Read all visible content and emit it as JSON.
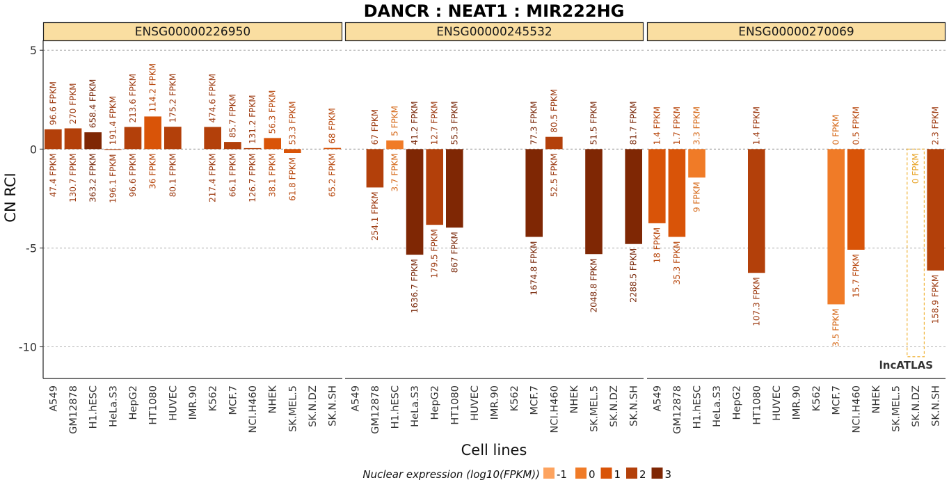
{
  "chart_data": {
    "type": "bar",
    "title": "DANCR : NEAT1 : MIR222HG",
    "xlabel": "Cell lines",
    "ylabel": "CN RCI",
    "ylim": [
      -11.6,
      5.5
    ],
    "yticks": [
      5,
      0,
      -5,
      -10
    ],
    "grid": "horizontal-dashed",
    "cell_lines": [
      "A549",
      "GM12878",
      "H1.hESC",
      "HeLa.S3",
      "HepG2",
      "HT1080",
      "HUVEC",
      "IMR.90",
      "K562",
      "MCF.7",
      "NCI.H460",
      "NHEK",
      "SK.MEL.5",
      "SK.N.DZ",
      "SK.N.SH"
    ],
    "legend": {
      "title": "Nuclear expression (log10(FPKM))",
      "position": "bottom",
      "levels": [
        {
          "label": "-1",
          "color": "#FDA35F"
        },
        {
          "label": "0",
          "color": "#F07B27"
        },
        {
          "label": "1",
          "color": "#D95408"
        },
        {
          "label": "2",
          "color": "#B3400A"
        },
        {
          "label": "3",
          "color": "#7F2704"
        }
      ]
    },
    "watermark": "lncATLAS",
    "panels": [
      {
        "gene_id": "ENSG00000226950",
        "bars": [
          {
            "cell": "A549",
            "value": 1.0,
            "level": 2,
            "label_top": "96.6 FPKM",
            "label_bottom": "47.4 FPKM"
          },
          {
            "cell": "GM12878",
            "value": 1.05,
            "level": 2,
            "label_top": "270 FPKM",
            "label_bottom": "130.7 FPKM"
          },
          {
            "cell": "H1.hESC",
            "value": 0.85,
            "level": 3,
            "label_top": "658.4 FPKM",
            "label_bottom": "363.2 FPKM"
          },
          {
            "cell": "HeLa.S3",
            "value": -0.04,
            "level": 2,
            "label_top": "191.4 FPKM",
            "label_bottom": "196.1 FPKM"
          },
          {
            "cell": "HepG2",
            "value": 1.12,
            "level": 2,
            "label_top": "213.6 FPKM",
            "label_bottom": "96.6 FPKM"
          },
          {
            "cell": "HT1080",
            "value": 1.65,
            "level": 1,
            "label_top": "114.2 FPKM",
            "label_bottom": "36 FPKM"
          },
          {
            "cell": "HUVEC",
            "value": 1.13,
            "level": 2,
            "label_top": "175.2 FPKM",
            "label_bottom": "80.1 FPKM"
          },
          {
            "cell": "K562",
            "value": 1.12,
            "level": 2,
            "label_top": "474.6 FPKM",
            "label_bottom": "217.4 FPKM"
          },
          {
            "cell": "MCF.7",
            "value": 0.36,
            "level": 2,
            "label_top": "85.7 FPKM",
            "label_bottom": "66.1 FPKM"
          },
          {
            "cell": "NCI.H460",
            "value": 0.05,
            "level": 2,
            "label_top": "131.2 FPKM",
            "label_bottom": "126.7 FPKM"
          },
          {
            "cell": "NHEK",
            "value": 0.56,
            "level": 1,
            "label_top": "56.3 FPKM",
            "label_bottom": "38.1 FPKM"
          },
          {
            "cell": "SK.MEL.5",
            "value": -0.2,
            "level": 1,
            "label_top": "53.3 FPKM",
            "label_bottom": "61.8 FPKM"
          },
          {
            "cell": "SK.N.SH",
            "value": 0.06,
            "level": 1,
            "label_top": "68 FPKM",
            "label_bottom": "65.2 FPKM"
          }
        ]
      },
      {
        "gene_id": "ENSG00000245532",
        "bars": [
          {
            "cell": "GM12878",
            "value": -1.94,
            "level": 2,
            "label_top": "67 FPKM",
            "label_bottom": "254.1 FPKM"
          },
          {
            "cell": "H1.hESC",
            "value": 0.44,
            "level": 0,
            "label_top": "5 FPKM",
            "label_bottom": "3.7 FPKM"
          },
          {
            "cell": "HeLa.S3",
            "value": -5.34,
            "level": 3,
            "label_top": "41.2 FPKM",
            "label_bottom": "1636.7 FPKM"
          },
          {
            "cell": "HepG2",
            "value": -3.83,
            "level": 2,
            "label_top": "12.7 FPKM",
            "label_bottom": "179.5 FPKM"
          },
          {
            "cell": "HT1080",
            "value": -3.97,
            "level": 3,
            "label_top": "55.3 FPKM",
            "label_bottom": "867 FPKM"
          },
          {
            "cell": "MCF.7",
            "value": -4.44,
            "level": 3,
            "label_top": "77.3 FPKM",
            "label_bottom": "1674.8 FPKM"
          },
          {
            "cell": "NCI.H460",
            "value": 0.62,
            "level": 2,
            "label_top": "80.5 FPKM",
            "label_bottom": "52.5 FPKM"
          },
          {
            "cell": "SK.MEL.5",
            "value": -5.31,
            "level": 3,
            "label_top": "51.5 FPKM",
            "label_bottom": "2048.8 FPKM"
          },
          {
            "cell": "SK.N.SH",
            "value": -4.8,
            "level": 3,
            "label_top": "81.7 FPKM",
            "label_bottom": "2288.5 FPKM"
          }
        ]
      },
      {
        "gene_id": "ENSG00000270069",
        "bars": [
          {
            "cell": "A549",
            "value": -3.75,
            "level": 1,
            "label_top": "1.4 FPKM",
            "label_bottom": "18 FPKM"
          },
          {
            "cell": "GM12878",
            "value": -4.44,
            "level": 1,
            "label_top": "1.7 FPKM",
            "label_bottom": "35.3 FPKM"
          },
          {
            "cell": "H1.hESC",
            "value": -1.44,
            "level": 0,
            "label_top": "3.3 FPKM",
            "label_bottom": "9 FPKM"
          },
          {
            "cell": "HT1080",
            "value": -6.26,
            "level": 2,
            "label_top": "1.4 FPKM",
            "label_bottom": "107.3 FPKM"
          },
          {
            "cell": "MCF.7",
            "value": -7.85,
            "level": 0,
            "label_top": "0 FPKM",
            "label_bottom": "3.5 FPKM"
          },
          {
            "cell": "NCI.H460",
            "value": -5.09,
            "level": 1,
            "label_top": "0.5 FPKM",
            "label_bottom": "15.7 FPKM"
          },
          {
            "cell": "SK.N.DZ",
            "value": -10.5,
            "level": -1,
            "na": true,
            "label_top": "",
            "label_bottom": "0 FPKM"
          },
          {
            "cell": "SK.N.SH",
            "value": -6.14,
            "level": 2,
            "label_top": "2.3 FPKM",
            "label_bottom": "158.9 FPKM"
          }
        ]
      }
    ]
  }
}
